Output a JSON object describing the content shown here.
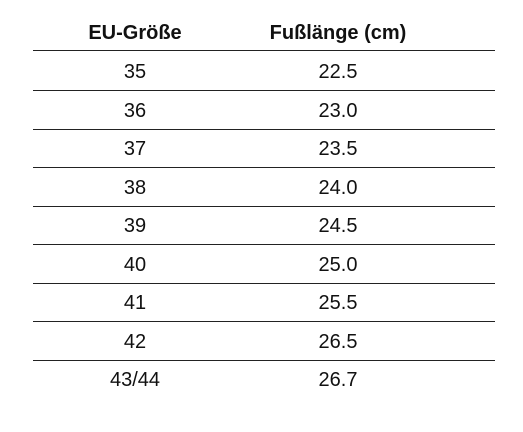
{
  "table": {
    "header": [
      "EU-Größe",
      "Fußlänge (cm)"
    ],
    "rows": [
      [
        "35",
        "22.5"
      ],
      [
        "36",
        "23.0"
      ],
      [
        "37",
        "23.5"
      ],
      [
        "38",
        "24.0"
      ],
      [
        "39",
        "24.5"
      ],
      [
        "40",
        "25.0"
      ],
      [
        "41",
        "25.5"
      ],
      [
        "42",
        "26.5"
      ],
      [
        "43/44",
        "26.7"
      ]
    ]
  }
}
